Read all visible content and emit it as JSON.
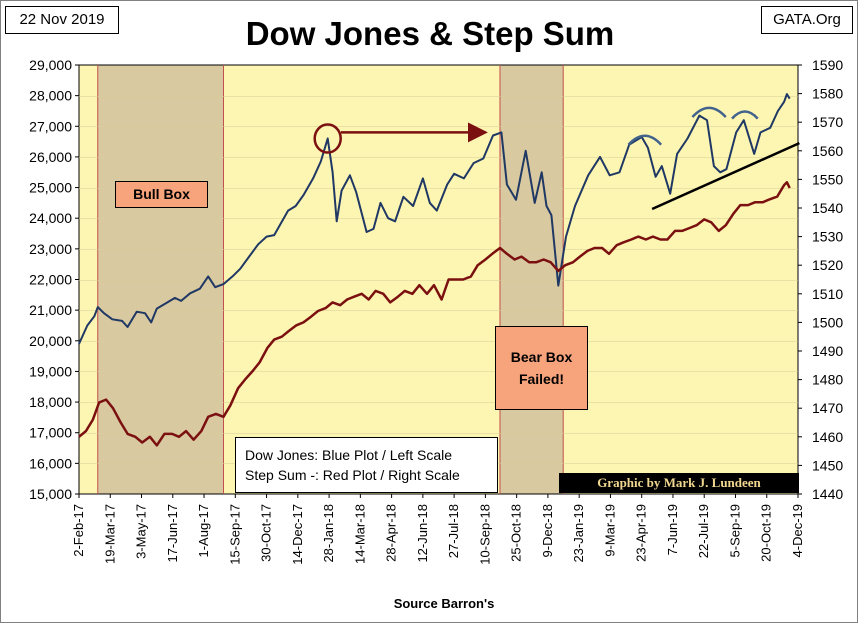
{
  "header": {
    "date": "22 Nov 2019",
    "org": "GATA.Org",
    "title": "Dow Jones & Step Sum"
  },
  "annotations": {
    "bull_box": "Bull Box",
    "bear_box_line1": "Bear Box",
    "bear_box_line2": "Failed!",
    "legend_line1": "Dow Jones: Blue Plot / Left Scale",
    "legend_line2": "Step Sum -: Red Plot / Right Scale",
    "credit": "Graphic by Mark J. Lundeen",
    "source": "Source Barron's"
  },
  "colors": {
    "plot_bg": "#fdf5b2",
    "box_shade": "#d9c9a0",
    "dow_line": "#1f3864",
    "step_line": "#7b1010",
    "label_fill": "#f7a47c",
    "shape_line": "#41638c",
    "circle": "#7b1010"
  },
  "chart_data": {
    "type": "line",
    "title": "Dow Jones & Step Sum",
    "xlabel": "Source Barron's",
    "x_start": "2017-02-02",
    "x_end": "2019-12-04",
    "x_ticks": [
      "2-Feb-17",
      "19-Mar-17",
      "3-May-17",
      "17-Jun-17",
      "1-Aug-17",
      "15-Sep-17",
      "30-Oct-17",
      "14-Dec-17",
      "28-Jan-18",
      "14-Mar-18",
      "28-Apr-18",
      "12-Jun-18",
      "27-Jul-18",
      "10-Sep-18",
      "25-Oct-18",
      "9-Dec-18",
      "23-Jan-19",
      "9-Mar-19",
      "23-Apr-19",
      "7-Jun-19",
      "22-Jul-19",
      "5-Sep-19",
      "20-Oct-19",
      "4-Dec-19"
    ],
    "y_left": {
      "label": "Dow Jones",
      "min": 15000,
      "max": 29000,
      "step": 1000,
      "ticks": [
        "15,000",
        "16,000",
        "17,000",
        "18,000",
        "19,000",
        "20,000",
        "21,000",
        "22,000",
        "23,000",
        "24,000",
        "25,000",
        "26,000",
        "27,000",
        "28,000",
        "29,000"
      ]
    },
    "y_right": {
      "label": "Step Sum",
      "min": 1440,
      "max": 1590,
      "step": 10,
      "ticks": [
        "1440",
        "1450",
        "1460",
        "1470",
        "1480",
        "1490",
        "1500",
        "1510",
        "1520",
        "1530",
        "1540",
        "1550",
        "1560",
        "1570",
        "1580",
        "1590"
      ]
    },
    "shaded_regions": [
      {
        "name": "Bull Box",
        "start": "2017-03-01",
        "end": "2017-08-29"
      },
      {
        "name": "Bear Box",
        "start": "2018-10-01",
        "end": "2018-12-31"
      }
    ],
    "series": [
      {
        "name": "Dow Jones",
        "axis": "left",
        "color": "#1f3864",
        "points": [
          [
            "2017-02-02",
            19900
          ],
          [
            "2017-02-14",
            20500
          ],
          [
            "2017-02-24",
            20800
          ],
          [
            "2017-03-01",
            21100
          ],
          [
            "2017-03-10",
            20900
          ],
          [
            "2017-03-22",
            20700
          ],
          [
            "2017-04-05",
            20650
          ],
          [
            "2017-04-13",
            20450
          ],
          [
            "2017-04-26",
            20950
          ],
          [
            "2017-05-08",
            20900
          ],
          [
            "2017-05-17",
            20600
          ],
          [
            "2017-05-25",
            21050
          ],
          [
            "2017-06-09",
            21250
          ],
          [
            "2017-06-20",
            21400
          ],
          [
            "2017-06-29",
            21300
          ],
          [
            "2017-07-12",
            21550
          ],
          [
            "2017-07-26",
            21700
          ],
          [
            "2017-08-07",
            22100
          ],
          [
            "2017-08-17",
            21750
          ],
          [
            "2017-08-29",
            21850
          ],
          [
            "2017-09-11",
            22100
          ],
          [
            "2017-09-22",
            22350
          ],
          [
            "2017-10-05",
            22750
          ],
          [
            "2017-10-18",
            23150
          ],
          [
            "2017-10-30",
            23400
          ],
          [
            "2017-11-10",
            23450
          ],
          [
            "2017-11-30",
            24250
          ],
          [
            "2017-12-11",
            24400
          ],
          [
            "2017-12-22",
            24750
          ],
          [
            "2018-01-05",
            25300
          ],
          [
            "2018-01-16",
            25850
          ],
          [
            "2018-01-26",
            26600
          ],
          [
            "2018-02-02",
            25500
          ],
          [
            "2018-02-08",
            23900
          ],
          [
            "2018-02-15",
            24900
          ],
          [
            "2018-02-27",
            25400
          ],
          [
            "2018-03-08",
            24850
          ],
          [
            "2018-03-23",
            23550
          ],
          [
            "2018-04-02",
            23650
          ],
          [
            "2018-04-12",
            24500
          ],
          [
            "2018-04-23",
            24000
          ],
          [
            "2018-05-03",
            23900
          ],
          [
            "2018-05-15",
            24700
          ],
          [
            "2018-05-29",
            24400
          ],
          [
            "2018-06-12",
            25300
          ],
          [
            "2018-06-22",
            24500
          ],
          [
            "2018-07-02",
            24250
          ],
          [
            "2018-07-17",
            25100
          ],
          [
            "2018-07-27",
            25450
          ],
          [
            "2018-08-10",
            25300
          ],
          [
            "2018-08-24",
            25800
          ],
          [
            "2018-09-07",
            25950
          ],
          [
            "2018-09-21",
            26700
          ],
          [
            "2018-10-03",
            26800
          ],
          [
            "2018-10-11",
            25100
          ],
          [
            "2018-10-24",
            24600
          ],
          [
            "2018-11-07",
            26200
          ],
          [
            "2018-11-20",
            24500
          ],
          [
            "2018-11-30",
            25500
          ],
          [
            "2018-12-07",
            24400
          ],
          [
            "2018-12-14",
            24100
          ],
          [
            "2018-12-24",
            21800
          ],
          [
            "2019-01-04",
            23400
          ],
          [
            "2019-01-17",
            24400
          ],
          [
            "2019-02-05",
            25400
          ],
          [
            "2019-02-22",
            26000
          ],
          [
            "2019-03-08",
            25400
          ],
          [
            "2019-03-22",
            25500
          ],
          [
            "2019-04-05",
            26400
          ],
          [
            "2019-04-23",
            26650
          ],
          [
            "2019-05-02",
            26300
          ],
          [
            "2019-05-13",
            25350
          ],
          [
            "2019-05-22",
            25700
          ],
          [
            "2019-06-03",
            24800
          ],
          [
            "2019-06-13",
            26100
          ],
          [
            "2019-06-28",
            26600
          ],
          [
            "2019-07-15",
            27350
          ],
          [
            "2019-07-26",
            27200
          ],
          [
            "2019-08-05",
            25700
          ],
          [
            "2019-08-14",
            25500
          ],
          [
            "2019-08-23",
            25600
          ],
          [
            "2019-09-06",
            26800
          ],
          [
            "2019-09-17",
            27200
          ],
          [
            "2019-10-02",
            26100
          ],
          [
            "2019-10-11",
            26800
          ],
          [
            "2019-10-25",
            26950
          ],
          [
            "2019-11-05",
            27500
          ],
          [
            "2019-11-14",
            27800
          ],
          [
            "2019-11-18",
            28050
          ],
          [
            "2019-11-22",
            27900
          ]
        ]
      },
      {
        "name": "Step Sum",
        "axis": "right",
        "color": "#7b1010",
        "points": [
          [
            "2017-02-02",
            1460
          ],
          [
            "2017-02-12",
            1462
          ],
          [
            "2017-02-22",
            1466
          ],
          [
            "2017-03-03",
            1472
          ],
          [
            "2017-03-13",
            1473
          ],
          [
            "2017-03-23",
            1470
          ],
          [
            "2017-04-03",
            1465
          ],
          [
            "2017-04-13",
            1461
          ],
          [
            "2017-04-24",
            1460
          ],
          [
            "2017-05-04",
            1458
          ],
          [
            "2017-05-15",
            1460
          ],
          [
            "2017-05-25",
            1457
          ],
          [
            "2017-06-05",
            1461
          ],
          [
            "2017-06-16",
            1461
          ],
          [
            "2017-06-26",
            1460
          ],
          [
            "2017-07-06",
            1462
          ],
          [
            "2017-07-17",
            1459
          ],
          [
            "2017-07-28",
            1462
          ],
          [
            "2017-08-07",
            1467
          ],
          [
            "2017-08-18",
            1468
          ],
          [
            "2017-08-29",
            1467
          ],
          [
            "2017-09-08",
            1471
          ],
          [
            "2017-09-19",
            1477
          ],
          [
            "2017-09-29",
            1480
          ],
          [
            "2017-10-10",
            1483
          ],
          [
            "2017-10-20",
            1486
          ],
          [
            "2017-10-31",
            1491
          ],
          [
            "2017-11-10",
            1494
          ],
          [
            "2017-11-21",
            1495
          ],
          [
            "2017-12-01",
            1497
          ],
          [
            "2017-12-12",
            1499
          ],
          [
            "2017-12-22",
            1500
          ],
          [
            "2018-01-02",
            1502
          ],
          [
            "2018-01-12",
            1504
          ],
          [
            "2018-01-23",
            1505
          ],
          [
            "2018-02-02",
            1507
          ],
          [
            "2018-02-13",
            1506
          ],
          [
            "2018-02-23",
            1508
          ],
          [
            "2018-03-05",
            1509
          ],
          [
            "2018-03-16",
            1510
          ],
          [
            "2018-03-26",
            1508
          ],
          [
            "2018-04-05",
            1511
          ],
          [
            "2018-04-16",
            1510
          ],
          [
            "2018-04-26",
            1507
          ],
          [
            "2018-05-07",
            1509
          ],
          [
            "2018-05-17",
            1511
          ],
          [
            "2018-05-28",
            1510
          ],
          [
            "2018-06-07",
            1513
          ],
          [
            "2018-06-18",
            1510
          ],
          [
            "2018-06-28",
            1513
          ],
          [
            "2018-07-09",
            1508
          ],
          [
            "2018-07-19",
            1515
          ],
          [
            "2018-07-30",
            1515
          ],
          [
            "2018-08-09",
            1515
          ],
          [
            "2018-08-20",
            1516
          ],
          [
            "2018-08-30",
            1520
          ],
          [
            "2018-09-10",
            1522
          ],
          [
            "2018-09-20",
            1524
          ],
          [
            "2018-10-01",
            1526
          ],
          [
            "2018-10-11",
            1524
          ],
          [
            "2018-10-22",
            1522
          ],
          [
            "2018-11-01",
            1523
          ],
          [
            "2018-11-12",
            1521
          ],
          [
            "2018-11-22",
            1521
          ],
          [
            "2018-12-03",
            1522
          ],
          [
            "2018-12-13",
            1521
          ],
          [
            "2018-12-24",
            1518
          ],
          [
            "2019-01-03",
            1520
          ],
          [
            "2019-01-14",
            1521
          ],
          [
            "2019-01-24",
            1523
          ],
          [
            "2019-02-04",
            1525
          ],
          [
            "2019-02-14",
            1526
          ],
          [
            "2019-02-25",
            1526
          ],
          [
            "2019-03-07",
            1524
          ],
          [
            "2019-03-18",
            1527
          ],
          [
            "2019-03-28",
            1528
          ],
          [
            "2019-04-08",
            1529
          ],
          [
            "2019-04-18",
            1530
          ],
          [
            "2019-04-29",
            1529
          ],
          [
            "2019-05-09",
            1530
          ],
          [
            "2019-05-20",
            1529
          ],
          [
            "2019-05-30",
            1529
          ],
          [
            "2019-06-10",
            1532
          ],
          [
            "2019-06-20",
            1532
          ],
          [
            "2019-07-01",
            1533
          ],
          [
            "2019-07-11",
            1534
          ],
          [
            "2019-07-22",
            1536
          ],
          [
            "2019-08-01",
            1535
          ],
          [
            "2019-08-12",
            1532
          ],
          [
            "2019-08-22",
            1534
          ],
          [
            "2019-09-02",
            1538
          ],
          [
            "2019-09-12",
            1541
          ],
          [
            "2019-09-23",
            1541
          ],
          [
            "2019-10-03",
            1542
          ],
          [
            "2019-10-14",
            1542
          ],
          [
            "2019-10-24",
            1543
          ],
          [
            "2019-11-04",
            1544
          ],
          [
            "2019-11-14",
            1548
          ],
          [
            "2019-11-18",
            1549
          ],
          [
            "2019-11-22",
            1547
          ]
        ]
      }
    ],
    "markup": {
      "circle": {
        "date": "2018-01-26",
        "value": 26600
      },
      "arrow": {
        "from": [
          "2018-02-14",
          26800
        ],
        "to": [
          "2018-09-10",
          26800
        ]
      },
      "trendline": {
        "from": [
          "2019-05-08",
          24300
        ],
        "to": [
          "2019-12-06",
          26450
        ]
      },
      "arcs": [
        {
          "from": "2019-04-04",
          "to": "2019-05-21",
          "value": 26400
        },
        {
          "from": "2019-07-05",
          "to": "2019-08-22",
          "value": 27300
        },
        {
          "from": "2019-08-31",
          "to": "2019-10-07",
          "value": 27250
        }
      ]
    }
  }
}
